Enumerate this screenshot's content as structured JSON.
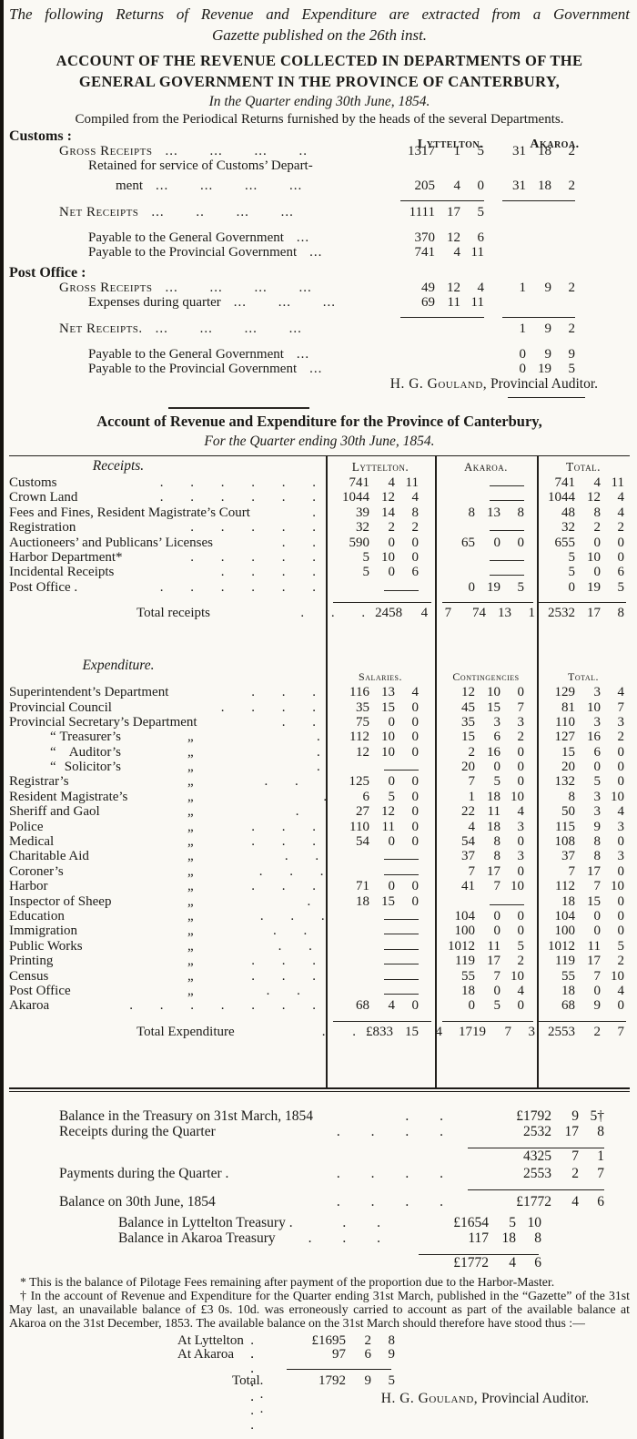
{
  "colors": {
    "ink": "#1b1a17",
    "paper": "#faf9f4"
  },
  "intro": {
    "line1": "The following Returns of Revenue and Expenditure are extracted from a Government",
    "line2": "Gazette published on the 26th inst."
  },
  "account1": {
    "title1": "ACCOUNT OF THE REVENUE COLLECTED IN DEPARTMENTS OF THE",
    "title2": "GENERAL GOVERNMENT IN THE PROVINCE OF CANTERBURY,",
    "subtitle": "In the Quarter ending 30th June, 1854.",
    "compiled": "Compiled from the Periodical Returns furnished by the heads of the several Departments.",
    "columns": {
      "lyttelton": "Lyttelton.",
      "akaroa": "Akaroa."
    },
    "customs": {
      "heading": "Customs :",
      "rows": [
        {
          "sc": true,
          "indent": 1,
          "label": "Gross Receipts",
          "dots": "... ... ... ..",
          "c1": "1317 1 5",
          "c2": "31 18 2"
        },
        {
          "indent": 2,
          "label": "Retained for service of Customs’ Depart-"
        },
        {
          "indent": 3,
          "label": "ment",
          "dots": "... ... ... ...",
          "c1": "205 4 0",
          "c2": "31 18 2",
          "mt": 6
        },
        {
          "type": "rule",
          "cols": [
            "c1",
            "c2"
          ]
        },
        {
          "sc": true,
          "indent": 1,
          "label": "Net Receipts",
          "dots": "... .. ... ...",
          "c1": "1111 17 5",
          "mt": 4
        },
        {
          "indent": 2,
          "label": "Payable to the General Government",
          "dots": "...",
          "c1": "370 12 6",
          "mt": 12
        },
        {
          "indent": 2,
          "label": "Payable to the Provincial Government",
          "dots": "...",
          "c1": "741 4 11"
        }
      ]
    },
    "post_office": {
      "heading": "Post Office :",
      "rows": [
        {
          "sc": true,
          "indent": 1,
          "label": "Gross Receipts",
          "dots": "... ... ... ...",
          "c1": "49 12 4",
          "c2": "1 9 2"
        },
        {
          "indent": 2,
          "label": "Expenses during quarter",
          "dots": "... ... ...",
          "c1": "69 11 11"
        },
        {
          "type": "rule",
          "cols": [
            "c1",
            "c2"
          ]
        },
        {
          "sc": true,
          "indent": 1,
          "label": "Net Receipts.",
          "dots": "... ... ... ...",
          "c2": "1 9 2",
          "mt": 4
        },
        {
          "indent": 2,
          "label": "Payable to the General Government",
          "dots": "...",
          "c2": "0 9 9",
          "mt": 12
        },
        {
          "indent": 2,
          "label": "Payable to the Provincial Government",
          "dots": "...",
          "c2": "0 19 5"
        }
      ]
    },
    "signature_name": "H. G. Gouland,",
    "signature_rest": " Provincial Auditor."
  },
  "account2": {
    "title": "Account of Revenue and Expenditure for the Province of Canterbury,",
    "subtitle": "For the Quarter ending 30th June, 1854.",
    "receipts": {
      "header_label": "Receipts.",
      "col_headers": [
        "Lyttelton.",
        "Akaroa.",
        "Total."
      ],
      "rows": [
        {
          "label": "Customs",
          "dots": ". . . . . .",
          "c1": "741 4 11",
          "c2": "-",
          "c3": "741 4 11"
        },
        {
          "label": "Crown Land",
          "dots": ". . . . . .",
          "c1": "1044 12 4",
          "c2": "-",
          "c3": "1044 12 4"
        },
        {
          "label": "Fees and Fines, Resident Magistrate’s Court",
          "dots": ".",
          "c1": "39 14 8",
          "c2": "8 13 8",
          "c3": "48 8 4"
        },
        {
          "label": "Registration",
          "dots": ". . . . .",
          "c1": "32 2 2",
          "c2": "-",
          "c3": "32 2 2"
        },
        {
          "label": "Auctioneers’ and Publicans’ Licenses",
          "dots": ". .",
          "c1": "590 0 0",
          "c2": "65 0 0",
          "c3": "655 0 0"
        },
        {
          "label": "Harbor Department*",
          "dots": ". . . . .",
          "c1": "5 10 0",
          "c2": "-",
          "c3": "5 10 0"
        },
        {
          "label": "Incidental Receipts",
          "dots": ". . . .",
          "c1": "5 0 6",
          "c2": "-",
          "c3": "5 0 6"
        },
        {
          "label": "Post Office .",
          "dots": ". . . . . .",
          "c1": "-",
          "c2": "0 19 5",
          "c3": "0 19 5"
        }
      ],
      "total": {
        "label": "Total receipts",
        "dots": ". . .",
        "c1": "2458 4 7",
        "c2": "74 13 1",
        "c3": "2532 17 8"
      }
    },
    "expenditure": {
      "header_label": "Expenditure.",
      "col_headers": [
        "Salaries.",
        "Contingencies",
        "Total."
      ],
      "rows": [
        {
          "label": "Superintendent’s Department",
          "dots": ". . .",
          "c1": "116 13 4",
          "c2": "12 10 0",
          "c3": "129 3 4"
        },
        {
          "label": "Provincial Council",
          "dots": ". . . .",
          "c1": "35 15 0",
          "c2": "45 15 7",
          "c3": "81 10 7"
        },
        {
          "label": "Provincial Secretary’s Department",
          "dots": ". .",
          "c1": "75 0 0",
          "c2": "35 3 3",
          "c3": "110 3 3"
        },
        {
          "q1": "“",
          "label": "Treasurer’s",
          "ditto": "„",
          "dots": ". . .",
          "c1": "112 10 0",
          "c2": "15 6 2",
          "c3": "127 16 2"
        },
        {
          "q1": "“",
          "label": "Auditor’s",
          "ditto": "„",
          "dots": ". . .",
          "c1": "12 10 0",
          "c2": "2 16 0",
          "c3": "15 6 0"
        },
        {
          "q1": "“",
          "label": "Solicitor’s",
          "ditto": "„",
          "dots": ". . .",
          "c1": "-",
          "c2": "20 0 0",
          "c3": "20 0 0"
        },
        {
          "label": "Registrar’s",
          "ditto": "„",
          "dots": ". . .",
          "c1": "125 0 0",
          "c2": "7 5 0",
          "c3": "132 5 0"
        },
        {
          "label": "Resident Magistrate’s",
          "ditto": "„",
          "dots": ". . .",
          "c1": "6 5 0",
          "c2": "1 18 10",
          "c3": "8 3 10"
        },
        {
          "label": "Sheriff and Gaol",
          "ditto": "„",
          "dots": ". . .",
          "c1": "27 12 0",
          "c2": "22 11 4",
          "c3": "50 3 4"
        },
        {
          "label": "Police",
          "ditto": "„",
          "dots": ". . .",
          "c1": "110 11 0",
          "c2": "4 18 3",
          "c3": "115 9 3"
        },
        {
          "label": "Medical",
          "ditto": "„",
          "dots": ". . .",
          "c1": "54 0 0",
          "c2": "54 8 0",
          "c3": "108 8 0"
        },
        {
          "label": "Charitable Aid",
          "ditto": "„",
          "dots": ". . .",
          "c1": "-",
          "c2": "37 8 3",
          "c3": "37 8 3"
        },
        {
          "label": "Coroner’s",
          "ditto": "„",
          "dots": ". . .",
          "c1": "-",
          "c2": "7 17 0",
          "c3": "7 17 0"
        },
        {
          "label": "Harbor",
          "ditto": "„",
          "dots": ". . .",
          "c1": "71 0 0",
          "c2": "41 7 10",
          "c3": "112 7 10"
        },
        {
          "label": "Inspector of Sheep",
          "ditto": "„",
          "dots": ". . .",
          "c1": "18 15 0",
          "c2": "-",
          "c3": "18 15 0"
        },
        {
          "label": "Education",
          "ditto": "„",
          "dots": ". . .",
          "c1": "-",
          "c2": "104 0 0",
          "c3": "104 0 0"
        },
        {
          "label": "Immigration",
          "ditto": "„",
          "dots": ". . .",
          "c1": "-",
          "c2": "100 0 0",
          "c3": "100 0 0"
        },
        {
          "label": "Public Works",
          "ditto": "„",
          "dots": ". . .",
          "c1": "-",
          "c2": "1012 11 5",
          "c3": "1012 11 5"
        },
        {
          "label": "Printing",
          "ditto": "„",
          "dots": ". . .",
          "c1": "-",
          "c2": "119 17 2",
          "c3": "119 17 2"
        },
        {
          "label": "Census",
          "ditto": "„",
          "dots": ". . .",
          "c1": "-",
          "c2": "55 7 10",
          "c3": "55 7 10"
        },
        {
          "label": "Post Office",
          "ditto": "„",
          "dots": ". . .",
          "c1": "-",
          "c2": "18 0 4",
          "c3": "18 0 4"
        },
        {
          "label": "Akaroa",
          "dots": ". . . . . . .",
          "c1": "68 4 0",
          "c2": "0 5 0",
          "c3": "68 9 0"
        }
      ],
      "total": {
        "label": "Total Expenditure",
        "dots": ". .",
        "c1": "£833 15 4",
        "c2": "1719 7 3",
        "c3": "2553 2 7"
      }
    }
  },
  "balance": {
    "rows": [
      {
        "label": "Balance in the Treasury on 31st March, 1854",
        "dots": ". .",
        "amount": "£1792 9 5†",
        "col": "outer"
      },
      {
        "label": "Receipts during the Quarter",
        "dots": ". . . .",
        "amount": "2532 17 8",
        "col": "outer"
      },
      {
        "rule": "outer"
      },
      {
        "label": "",
        "amount": "4325 7 1",
        "col": "outer"
      },
      {
        "label": "Payments during the Quarter .",
        "dots": ". . . .",
        "amount": "2553 2 7",
        "col": "outer",
        "mt": 2
      },
      {
        "rule": "outer"
      },
      {
        "label": "Balance on 30th June, 1854",
        "dots": ". . . .",
        "amount": "£1772 4 6",
        "col": "outer",
        "mt": 4
      },
      {
        "label": "Balance in Lyttelton Treasury .",
        "dots": ". .",
        "amount": "£1654 5 10",
        "col": "inner",
        "indent": true,
        "mt": 6
      },
      {
        "label": "Balance in Akaroa Treasury",
        "dots": ". . .",
        "amount": "117 18 8",
        "col": "inner",
        "indent": true
      },
      {
        "rule": "inner"
      },
      {
        "label": "",
        "amount": "£1772 4 6",
        "col": "inner"
      }
    ]
  },
  "footnotes": {
    "star": "* This is the balance of Pilotage Fees remaining after payment of the proportion due to the Harbor-Master.",
    "dagger": "† In the account of Revenue and Expenditure for the Quarter ending 31st March, published in the “Gazette” of the 31st May last, an unavailable balance of £3 0s. 10d. was erroneously carried to account as part of the available balance at Akaroa on the 31st December, 1853. The available balance on the 31st March should therefore have stood thus :—",
    "at_block": [
      {
        "label": "At Lyttelton",
        "dots": ". . . . .",
        "amount": "£1695 2 8"
      },
      {
        "label": "At Akaroa",
        "dots": ". . . . . .",
        "amount": "97 6 9"
      }
    ],
    "total_row": {
      "label": "Total",
      "dots": ". . .",
      "amount": "1792 9 5"
    }
  },
  "signature2_name": "H. G. Gouland,",
  "signature2_rest": " Provincial Auditor."
}
